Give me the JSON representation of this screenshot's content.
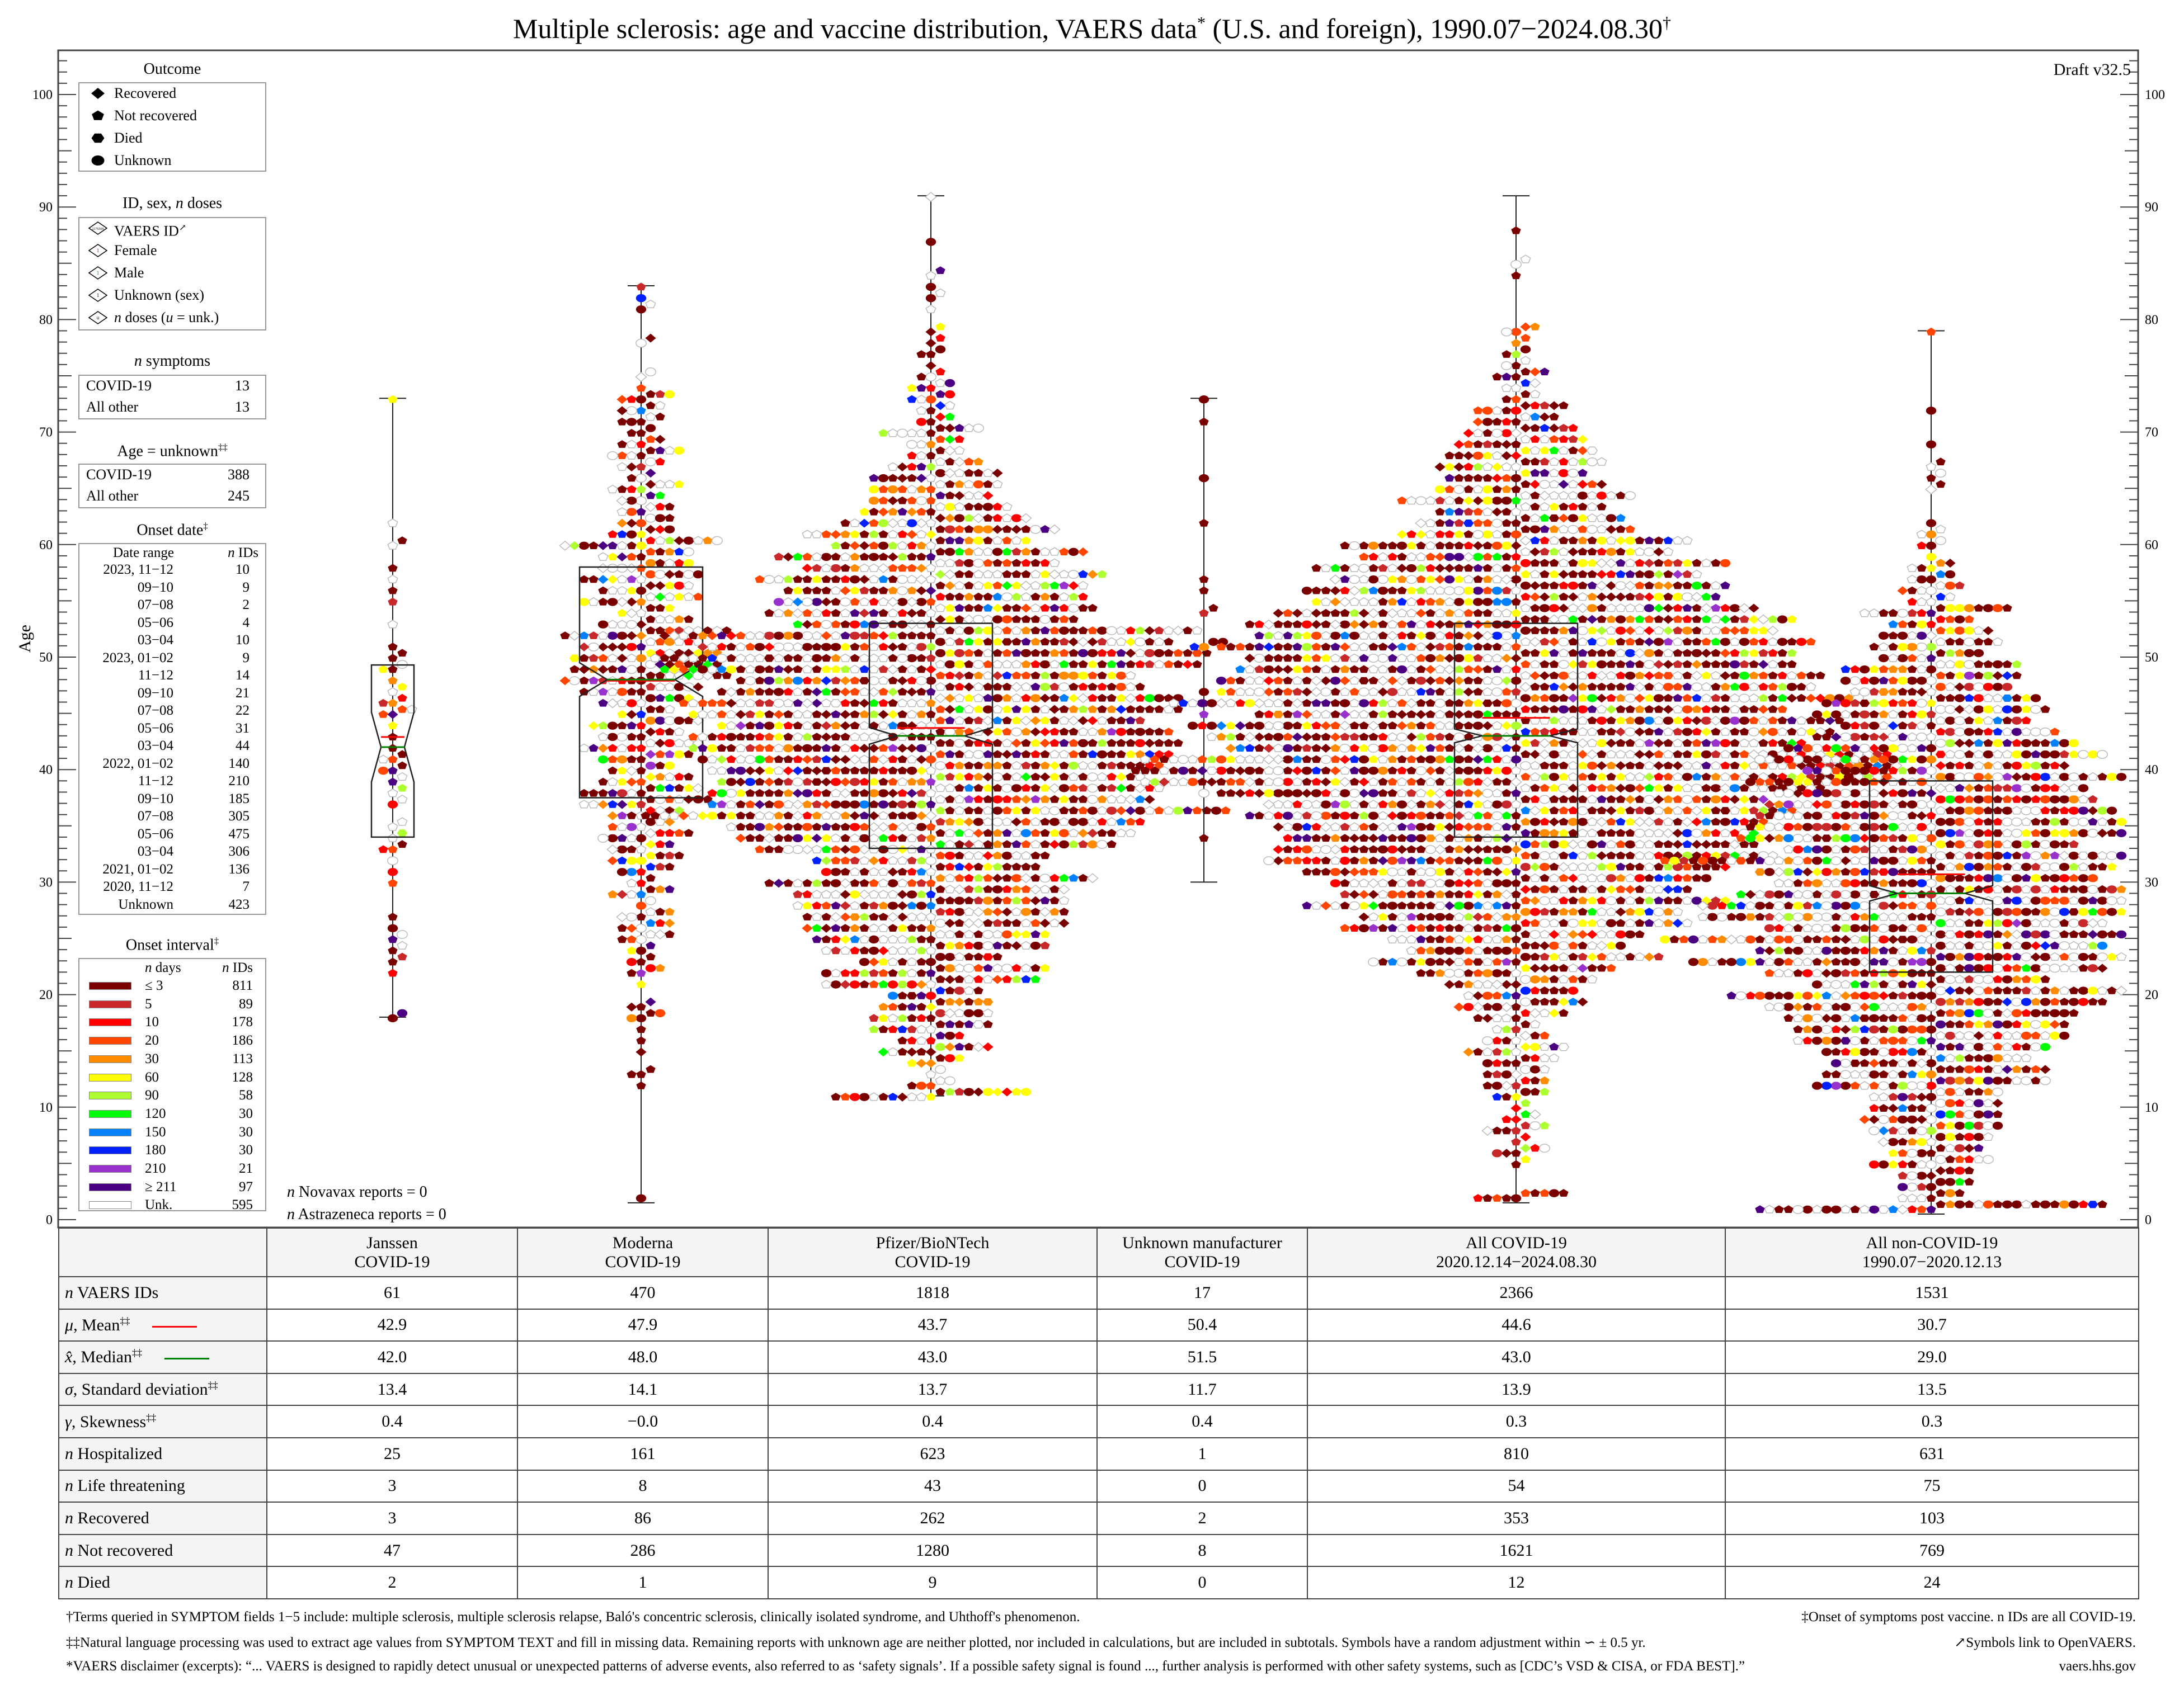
{
  "title": {
    "text": "Multiple sclerosis: age and vaccine distribution, VAERS data",
    "sup1": "*",
    "rest": " (U.S. and foreign), 1990.07−2024.08.30",
    "sup2": "†"
  },
  "draft": "Draft v32.5",
  "legend": {
    "outcome": {
      "title": "Outcome",
      "items": [
        {
          "label": "Recovered",
          "icon": "diamond"
        },
        {
          "label": "Not recovered",
          "icon": "pentagon"
        },
        {
          "label": "Died",
          "icon": "hexagon"
        },
        {
          "label": "Unknown",
          "icon": "circle"
        }
      ]
    },
    "id_sex": {
      "title_pre": "ID, sex, ",
      "title_i": "n",
      "title_post": " doses",
      "items": [
        {
          "label": "VAERS ID",
          "sup": "↗",
          "mark": "2176509",
          "color": "#000000"
        },
        {
          "label": "Female",
          "mark": "1",
          "color": "#800080"
        },
        {
          "label": "Male",
          "mark": "1",
          "color": "#008000"
        },
        {
          "label": "Unknown (sex)",
          "mark": "1",
          "color": "#000000"
        },
        {
          "label_i": "n",
          "label": " doses (",
          "label_i2": "u",
          "label2": " = unk.)",
          "mark": "u",
          "color": "#000000"
        }
      ]
    },
    "symptoms": {
      "title_i": "n",
      "title": " symptoms",
      "rows": [
        {
          "k": "COVID-19",
          "v": "13"
        },
        {
          "k": "All other",
          "v": "13"
        }
      ]
    },
    "age_unknown": {
      "title": "Age = unknown",
      "sup": "‡‡",
      "rows": [
        {
          "k": "COVID-19",
          "v": "388"
        },
        {
          "k": "All other",
          "v": "245"
        }
      ]
    },
    "onset_date": {
      "title": "Onset date",
      "sup": "‡",
      "h1": "Date range",
      "h2_i": "n",
      "h2": " IDs",
      "rows": [
        [
          "2023, 11−12",
          "10"
        ],
        [
          "09−10",
          "9"
        ],
        [
          "07−08",
          "2"
        ],
        [
          "05−06",
          "4"
        ],
        [
          "03−04",
          "10"
        ],
        [
          "2023, 01−02",
          "9"
        ],
        [
          "11−12",
          "14"
        ],
        [
          "09−10",
          "21"
        ],
        [
          "07−08",
          "22"
        ],
        [
          "05−06",
          "31"
        ],
        [
          "03−04",
          "44"
        ],
        [
          "2022, 01−02",
          "140"
        ],
        [
          "11−12",
          "210"
        ],
        [
          "09−10",
          "185"
        ],
        [
          "07−08",
          "305"
        ],
        [
          "05−06",
          "475"
        ],
        [
          "03−04",
          "306"
        ],
        [
          "2021, 01−02",
          "136"
        ],
        [
          "2020, 11−12",
          "7"
        ],
        [
          "Unknown",
          "423"
        ]
      ]
    },
    "onset_interval": {
      "title": "Onset interval",
      "sup": "‡",
      "h1_i": "n",
      "h1": " days",
      "h2_i": "n",
      "h2": " IDs",
      "rows": [
        {
          "days": "≤ 3",
          "n": "811",
          "color": "#7a0000"
        },
        {
          "days": "5",
          "n": "89",
          "color": "#c8282a"
        },
        {
          "days": "10",
          "n": "178",
          "color": "#ff0000"
        },
        {
          "days": "20",
          "n": "186",
          "color": "#ff4500"
        },
        {
          "days": "30",
          "n": "113",
          "color": "#ff8c00"
        },
        {
          "days": "60",
          "n": "128",
          "color": "#ffff00"
        },
        {
          "days": "90",
          "n": "58",
          "color": "#adff2f"
        },
        {
          "days": "120",
          "n": "30",
          "color": "#00ff00"
        },
        {
          "days": "150",
          "n": "30",
          "color": "#0080ff"
        },
        {
          "days": "180",
          "n": "30",
          "color": "#0020ff"
        },
        {
          "days": "210",
          "n": "21",
          "color": "#9932cc"
        },
        {
          "days": "≥ 211",
          "n": "97",
          "color": "#4b0082"
        },
        {
          "days": "Unk.",
          "n": "595",
          "color": "#ffffff"
        }
      ]
    }
  },
  "notes": {
    "novavax": " Novavax reports = 0",
    "astrazeneca": " Astrazeneca reports = 0",
    "n": "n"
  },
  "chart_data": {
    "type": "beeswarm with notched box plots",
    "ylabel": "Age",
    "ylim": [
      0,
      100
    ],
    "yticks": [
      0,
      10,
      20,
      30,
      40,
      50,
      60,
      70,
      80,
      90,
      100
    ],
    "grid": false,
    "mean_color": "#ff0000",
    "median_color": "#008000",
    "groups": [
      {
        "name": "Janssen COVID-19",
        "n": 61,
        "mean": 42.9,
        "median": 42.0,
        "sd": 13.4,
        "min": 18,
        "max": 73,
        "q1": 34,
        "q3": 49.3
      },
      {
        "name": "Moderna COVID-19",
        "n": 470,
        "mean": 47.9,
        "median": 48.0,
        "sd": 14.1,
        "min": 1.5,
        "max": 83,
        "q1": 37.5,
        "q3": 58
      },
      {
        "name": "Pfizer/BioNTech COVID-19",
        "n": 1818,
        "mean": 43.7,
        "median": 43.0,
        "sd": 13.7,
        "min": 11,
        "max": 91,
        "q1": 33,
        "q3": 53
      },
      {
        "name": "Unknown manufacturer COVID-19",
        "n": 17,
        "mean": 50.4,
        "median": 51.5,
        "sd": 11.7,
        "min": 30,
        "max": 73
      },
      {
        "name": "All COVID-19",
        "n": 2366,
        "mean": 44.6,
        "median": 43.0,
        "sd": 13.9,
        "min": 1.5,
        "max": 91,
        "q1": 34,
        "q3": 53
      },
      {
        "name": "All non-COVID-19",
        "n": 1531,
        "mean": 30.7,
        "median": 29.0,
        "sd": 13.5,
        "min": 0.5,
        "max": 79,
        "q1": 22,
        "q3": 39
      }
    ]
  },
  "table": {
    "headers": [
      [
        "Janssen",
        "COVID-19"
      ],
      [
        "Moderna",
        "COVID-19"
      ],
      [
        "Pfizer/BioNTech",
        "COVID-19"
      ],
      [
        "Unknown manufacturer",
        "COVID-19"
      ],
      [
        "All COVID-19",
        "2020.12.14−2024.08.30"
      ],
      [
        "All non-COVID-19",
        "1990.07−2020.12.13"
      ]
    ],
    "rows": [
      {
        "sym": "n",
        "label": " VAERS IDs",
        "sup": "",
        "values": [
          "61",
          "470",
          "1818",
          "17",
          "2366",
          "1531"
        ]
      },
      {
        "sym": "μ",
        "label": ", Mean",
        "sup": "‡‡",
        "line": "#ff0000",
        "values": [
          "42.9",
          "47.9",
          "43.7",
          "50.4",
          "44.6",
          "30.7"
        ]
      },
      {
        "sym": "x̂",
        "label": ", Median",
        "sup": "‡‡",
        "line": "#008000",
        "values": [
          "42.0",
          "48.0",
          "43.0",
          "51.5",
          "43.0",
          "29.0"
        ]
      },
      {
        "sym": "σ",
        "label": ", Standard deviation",
        "sup": "‡‡",
        "values": [
          "13.4",
          "14.1",
          "13.7",
          "11.7",
          "13.9",
          "13.5"
        ]
      },
      {
        "sym": "γ",
        "label": ", Skewness",
        "sup": "‡‡",
        "values": [
          "0.4",
          "−0.0",
          "0.4",
          "0.4",
          "0.3",
          "0.3"
        ]
      },
      {
        "sym": "n",
        "label": " Hospitalized",
        "sup": "",
        "values": [
          "25",
          "161",
          "623",
          "1",
          "810",
          "631"
        ]
      },
      {
        "sym": "n",
        "label": " Life threatening",
        "sup": "",
        "values": [
          "3",
          "8",
          "43",
          "0",
          "54",
          "75"
        ]
      },
      {
        "sym": "n",
        "label": " Recovered",
        "sup": "",
        "values": [
          "3",
          "86",
          "262",
          "2",
          "353",
          "103"
        ]
      },
      {
        "sym": "n",
        "label": " Not recovered",
        "sup": "",
        "values": [
          "47",
          "286",
          "1280",
          "8",
          "1621",
          "769"
        ]
      },
      {
        "sym": "n",
        "label": " Died",
        "sup": "",
        "values": [
          "2",
          "1",
          "9",
          "0",
          "12",
          "24"
        ]
      }
    ]
  },
  "footnotes": {
    "f1": "†Terms queried in SYMPTOM fields 1−5 include: multiple sclerosis, multiple sclerosis relapse, Baló's concentric sclerosis, clinically isolated syndrome, and Uhthoff's phenomenon.",
    "f1r": "‡Onset of symptoms post vaccine. n IDs are all COVID-19.",
    "f2": "‡‡Natural language processing was used to extract age values from SYMPTOM TEXT and fill in missing data. Remaining reports with unknown age are neither plotted, nor included in calculations, but are included in subtotals. Symbols have a random adjustment within ∽ ± 0.5 yr.",
    "f2r": "↗Symbols link to OpenVAERS.",
    "f3": "*VAERS disclaimer (excerpts): “... VAERS is designed to rapidly detect unusual or unexpected patterns of adverse events, also referred to as ‘safety signals’. If a possible safety signal is found ..., further analysis is performed with other safety systems, such as [CDC’s VSD & CISA, or FDA BEST].”",
    "f3r": "vaers.hhs.gov"
  }
}
